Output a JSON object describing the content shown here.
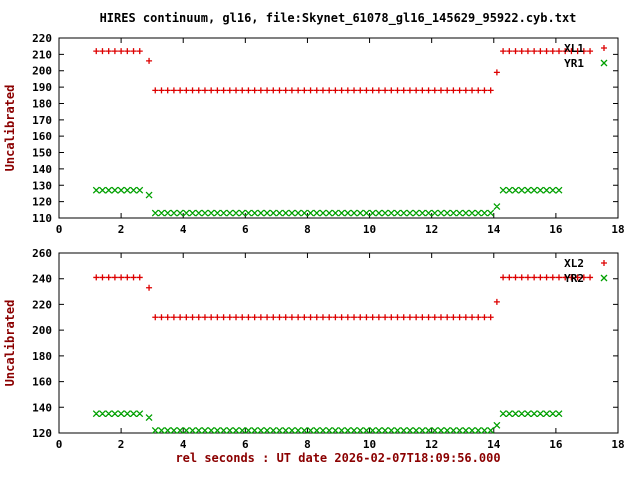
{
  "title": "HIRES continuum, gl16, file:Skynet_61078_gl16_145629_95922.cyb.txt",
  "xlabel": "rel seconds : UT date 2026-02-07T18:09:56.000",
  "colors": {
    "red_series": "#dd0000",
    "green_series": "#00a000",
    "axis_label": "#8b0000",
    "title": "#000000",
    "tick_label": "#000000",
    "border": "#000000",
    "background": "#ffffff"
  },
  "chart_data": [
    {
      "type": "scatter",
      "ylabel": "Uncalibrated",
      "xlim": [
        0,
        18
      ],
      "ylim": [
        110,
        220
      ],
      "xticks": [
        0,
        2,
        4,
        6,
        8,
        10,
        12,
        14,
        16,
        18
      ],
      "yticks": [
        110,
        120,
        130,
        140,
        150,
        160,
        170,
        180,
        190,
        200,
        210,
        220
      ],
      "grid": false,
      "legend_position": "top-right",
      "point_step": 0.2,
      "segments_note": "each segment is [x_start, x_end, y]; points every point_step seconds",
      "series": [
        {
          "name": "XL1",
          "marker": "plus",
          "color": "#dd0000",
          "segments": [
            [
              1.2,
              2.6,
              212
            ],
            [
              2.9,
              2.9,
              206
            ],
            [
              3.1,
              13.9,
              188
            ],
            [
              14.1,
              14.1,
              199
            ],
            [
              14.3,
              17.1,
              212
            ]
          ]
        },
        {
          "name": "YR1",
          "marker": "cross",
          "color": "#00a000",
          "segments": [
            [
              1.2,
              2.6,
              127
            ],
            [
              2.9,
              2.9,
              124
            ],
            [
              3.1,
              13.9,
              113
            ],
            [
              14.1,
              14.1,
              117
            ],
            [
              14.3,
              16.1,
              127
            ]
          ]
        }
      ]
    },
    {
      "type": "scatter",
      "ylabel": "Uncalibrated",
      "xlim": [
        0,
        18
      ],
      "ylim": [
        120,
        260
      ],
      "xticks": [
        0,
        2,
        4,
        6,
        8,
        10,
        12,
        14,
        16,
        18
      ],
      "yticks": [
        120,
        140,
        160,
        180,
        200,
        220,
        240,
        260
      ],
      "grid": false,
      "legend_position": "top-right",
      "point_step": 0.2,
      "segments_note": "each segment is [x_start, x_end, y]; points every point_step seconds",
      "series": [
        {
          "name": "XL2",
          "marker": "plus",
          "color": "#dd0000",
          "segments": [
            [
              1.2,
              2.6,
              241
            ],
            [
              2.9,
              2.9,
              233
            ],
            [
              3.1,
              13.9,
              210
            ],
            [
              14.1,
              14.1,
              222
            ],
            [
              14.3,
              17.1,
              241
            ]
          ]
        },
        {
          "name": "YR2",
          "marker": "cross",
          "color": "#00a000",
          "segments": [
            [
              1.2,
              2.6,
              135
            ],
            [
              2.9,
              2.9,
              132
            ],
            [
              3.1,
              13.9,
              122
            ],
            [
              14.1,
              14.1,
              126
            ],
            [
              14.3,
              16.1,
              135
            ]
          ]
        }
      ]
    }
  ]
}
